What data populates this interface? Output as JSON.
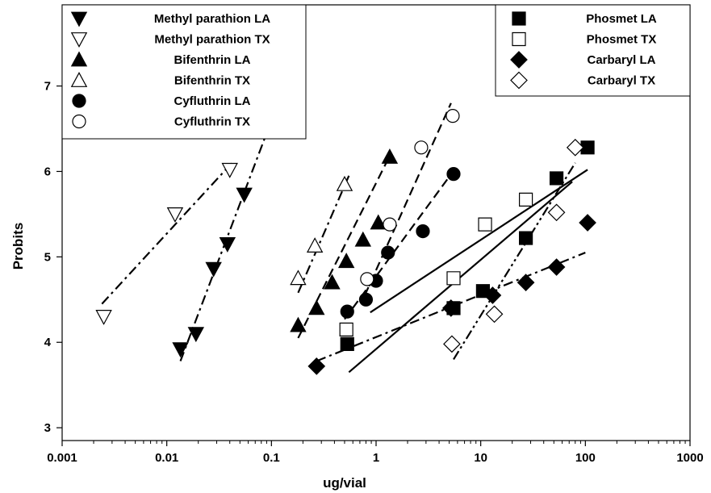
{
  "chart_data": {
    "type": "scatter",
    "title": "",
    "xlabel": "ug/vial",
    "ylabel": "Probits",
    "xscale": "log",
    "xlim": [
      0.001,
      1000
    ],
    "ylim": [
      2.85,
      7.95
    ],
    "grid": false,
    "x_ticks": [
      {
        "value": 0.001,
        "label": "0.001"
      },
      {
        "value": 0.01,
        "label": "0.01"
      },
      {
        "value": 0.1,
        "label": "0.1"
      },
      {
        "value": 1,
        "label": "1"
      },
      {
        "value": 10,
        "label": "10"
      },
      {
        "value": 100,
        "label": "100"
      },
      {
        "value": 1000,
        "label": "1000"
      }
    ],
    "y_ticks": [
      {
        "value": 3,
        "label": "3"
      },
      {
        "value": 4,
        "label": "4"
      },
      {
        "value": 5,
        "label": "5"
      },
      {
        "value": 6,
        "label": "6"
      },
      {
        "value": 7,
        "label": "7"
      }
    ],
    "legends": [
      {
        "placement": "top-left",
        "series": [
          0,
          1,
          2,
          3,
          4,
          5
        ]
      },
      {
        "placement": "top-right",
        "series": [
          6,
          7,
          8,
          9
        ]
      }
    ],
    "series": [
      {
        "name": "Methyl parathion LA",
        "marker": "triangle-down",
        "fill": "filled",
        "line": "dash-dot",
        "x": [
          0.0135,
          0.019,
          0.028,
          0.038,
          0.055,
          0.13
        ],
        "y": [
          3.92,
          4.1,
          4.86,
          5.15,
          5.73,
          7.07
        ],
        "fit": {
          "x": [
            0.0135,
            0.14
          ],
          "y": [
            3.78,
            7.07
          ]
        }
      },
      {
        "name": "Methyl parathion TX",
        "marker": "triangle-down",
        "fill": "open",
        "line": "dash-dot",
        "x": [
          0.0025,
          0.012,
          0.04
        ],
        "y": [
          4.3,
          5.5,
          6.02
        ],
        "fit": {
          "x": [
            0.0024,
            0.042
          ],
          "y": [
            4.45,
            6.1
          ]
        }
      },
      {
        "name": "Bifenthrin LA",
        "marker": "triangle-up",
        "fill": "filled",
        "line": "dash",
        "x": [
          0.18,
          0.27,
          0.38,
          0.52,
          0.75,
          1.05,
          1.35
        ],
        "y": [
          4.2,
          4.4,
          4.7,
          4.95,
          5.2,
          5.4,
          6.17
        ],
        "fit": {
          "x": [
            0.18,
            1.4
          ],
          "y": [
            4.05,
            6.22
          ]
        }
      },
      {
        "name": "Bifenthrin TX",
        "marker": "triangle-up",
        "fill": "open",
        "line": "dash-dot",
        "x": [
          0.18,
          0.26,
          0.5
        ],
        "y": [
          4.75,
          5.13,
          5.85
        ],
        "fit": {
          "x": [
            0.18,
            0.55
          ],
          "y": [
            4.58,
            5.95
          ]
        }
      },
      {
        "name": "Cyfluthrin LA",
        "marker": "circle",
        "fill": "filled",
        "line": "dash",
        "x": [
          0.53,
          0.8,
          1.0,
          1.3,
          2.8,
          5.5
        ],
        "y": [
          4.36,
          4.5,
          4.72,
          5.05,
          5.3,
          5.97
        ],
        "fit": {
          "x": [
            0.5,
            5.6
          ],
          "y": [
            4.27,
            6.02
          ]
        }
      },
      {
        "name": "Cyfluthrin TX",
        "marker": "circle",
        "fill": "open",
        "line": "dash",
        "x": [
          0.82,
          1.35,
          2.7,
          5.4
        ],
        "y": [
          4.74,
          5.38,
          6.28,
          6.65
        ],
        "fit": {
          "x": [
            0.78,
            5.2
          ],
          "y": [
            4.55,
            6.8
          ]
        }
      },
      {
        "name": "Phosmet LA",
        "marker": "square",
        "fill": "filled",
        "line": "solid",
        "x": [
          0.53,
          5.5,
          10.5,
          27,
          53,
          105
        ],
        "y": [
          3.98,
          4.4,
          4.6,
          5.22,
          5.92,
          6.28
        ],
        "fit": {
          "x": [
            0.55,
            75
          ],
          "y": [
            3.65,
            5.88
          ]
        }
      },
      {
        "name": "Phosmet TX",
        "marker": "square",
        "fill": "open",
        "line": "solid",
        "x": [
          0.52,
          5.5,
          11,
          27
        ],
        "y": [
          4.15,
          4.75,
          5.38,
          5.67
        ],
        "fit": {
          "x": [
            0.88,
            105
          ],
          "y": [
            4.35,
            6.02
          ]
        }
      },
      {
        "name": "Carbaryl LA",
        "marker": "diamond",
        "fill": "filled",
        "line": "dash-dot",
        "x": [
          0.27,
          5.2,
          13,
          27,
          53,
          105
        ],
        "y": [
          3.72,
          4.4,
          4.55,
          4.7,
          4.88,
          5.4
        ],
        "fit": {
          "x": [
            0.27,
            100
          ],
          "y": [
            3.78,
            5.05
          ]
        }
      },
      {
        "name": "Carbaryl TX",
        "marker": "diamond",
        "fill": "open",
        "line": "dash-dot-dot",
        "x": [
          5.3,
          13.5,
          53,
          80
        ],
        "y": [
          3.98,
          4.33,
          5.52,
          6.28
        ],
        "fit": {
          "x": [
            5.5,
            80
          ],
          "y": [
            3.8,
            6.1
          ]
        }
      }
    ]
  }
}
